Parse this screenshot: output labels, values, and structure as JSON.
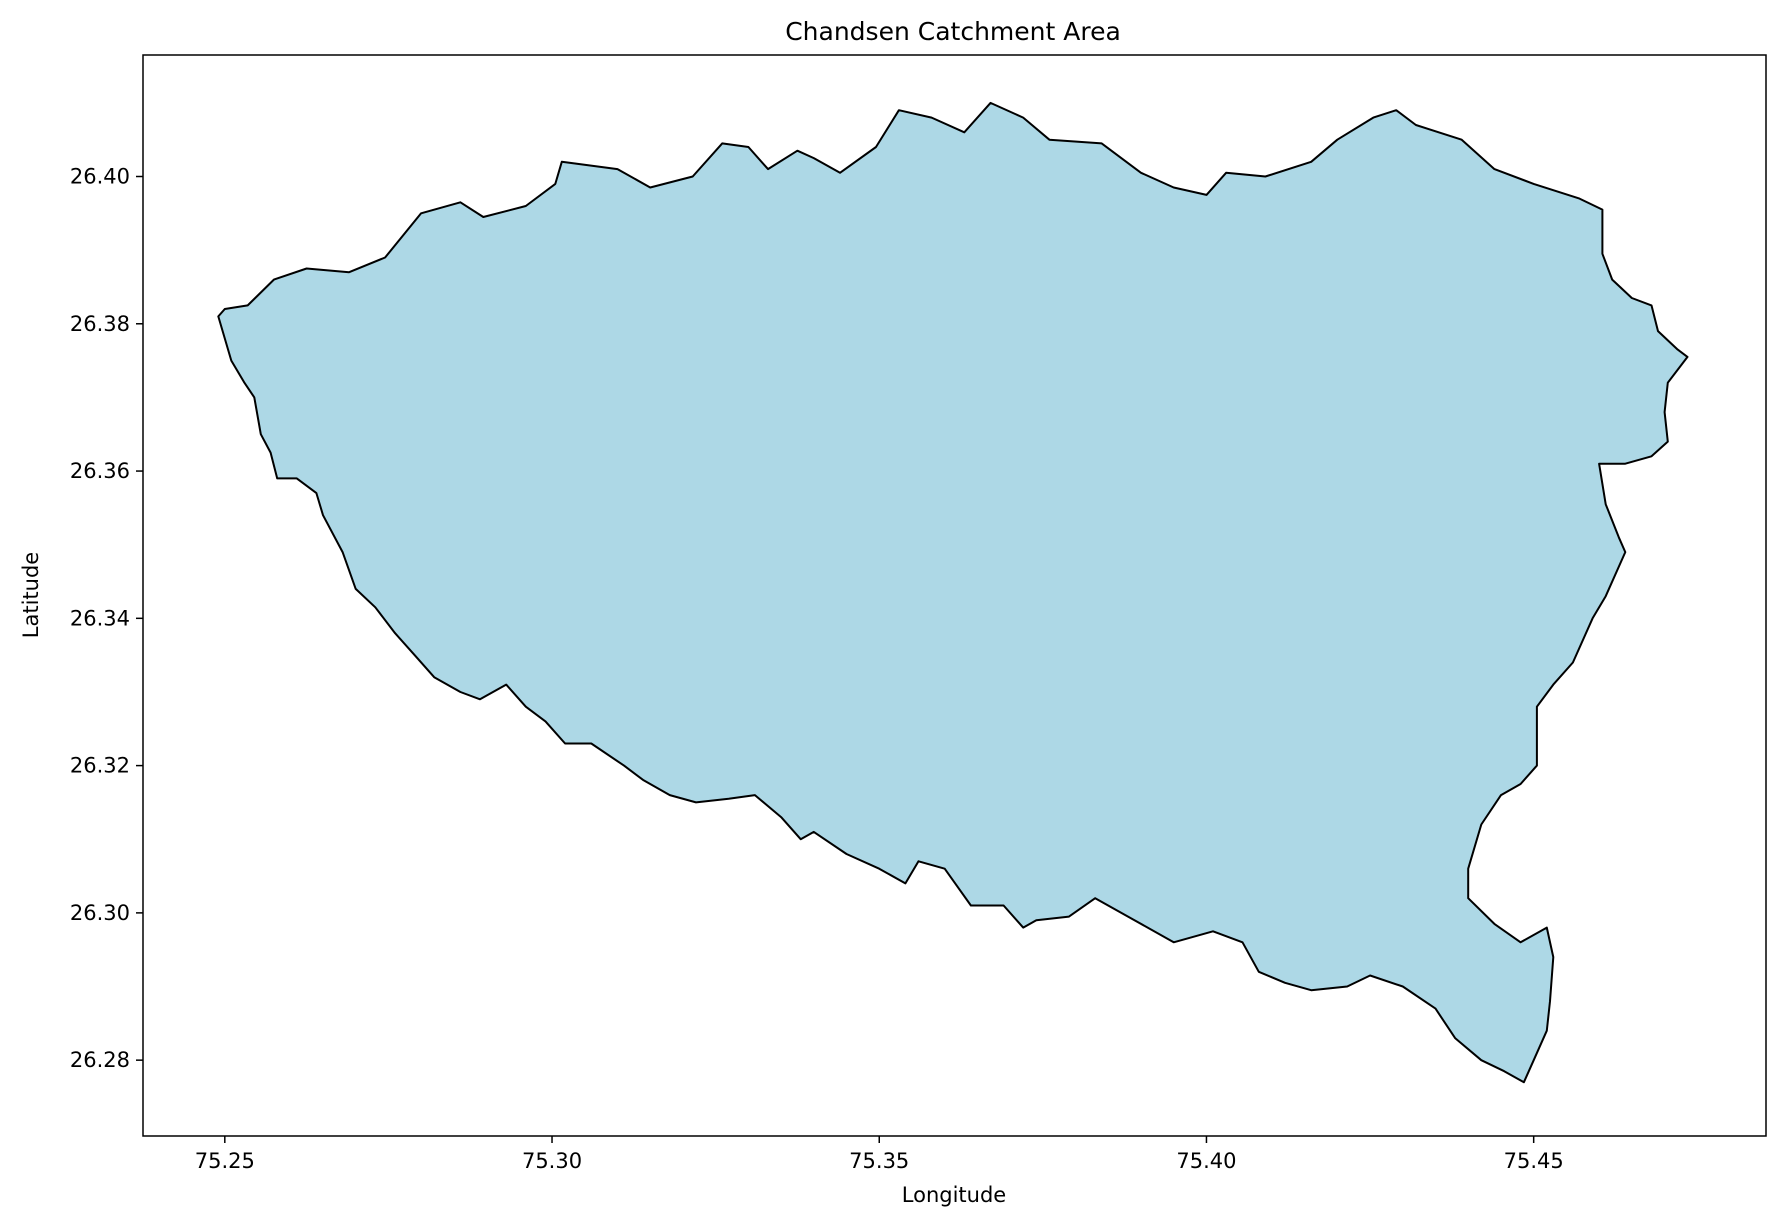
{
  "chart_data": {
    "type": "map",
    "title": "Chandsen Catchment Area",
    "xlabel": "Longitude",
    "ylabel": "Latitude",
    "xlim": [
      75.2375,
      75.4855
    ],
    "ylim": [
      26.2697,
      26.4165
    ],
    "x_ticks": [
      75.25,
      75.3,
      75.35,
      75.4,
      75.45
    ],
    "x_tick_labels": [
      "75.25",
      "75.30",
      "75.35",
      "75.40",
      "75.45"
    ],
    "y_ticks": [
      26.28,
      26.3,
      26.32,
      26.34,
      26.36,
      26.38,
      26.4
    ],
    "y_tick_labels": [
      "26.28",
      "26.30",
      "26.32",
      "26.34",
      "26.36",
      "26.38",
      "26.40"
    ],
    "grid": false,
    "fill_color": "#add8e6",
    "edge_color": "#000000",
    "polygon_name": "Chandsen catchment boundary",
    "boundary": [
      [
        75.249,
        26.381
      ],
      [
        75.25,
        26.382
      ],
      [
        75.2535,
        26.3825
      ],
      [
        75.2575,
        26.386
      ],
      [
        75.2625,
        26.3875
      ],
      [
        75.269,
        26.387
      ],
      [
        75.2745,
        26.389
      ],
      [
        75.28,
        26.395
      ],
      [
        75.286,
        26.3965
      ],
      [
        75.2895,
        26.3945
      ],
      [
        75.296,
        26.396
      ],
      [
        75.3005,
        26.399
      ],
      [
        75.3015,
        26.402
      ],
      [
        75.31,
        26.401
      ],
      [
        75.315,
        26.3985
      ],
      [
        75.3215,
        26.4
      ],
      [
        75.326,
        26.4045
      ],
      [
        75.33,
        26.404
      ],
      [
        75.333,
        26.401
      ],
      [
        75.3375,
        26.4035
      ],
      [
        75.34,
        26.4025
      ],
      [
        75.344,
        26.4005
      ],
      [
        75.3495,
        26.404
      ],
      [
        75.353,
        26.409
      ],
      [
        75.358,
        26.408
      ],
      [
        75.363,
        26.406
      ],
      [
        75.367,
        26.41
      ],
      [
        75.372,
        26.408
      ],
      [
        75.376,
        26.405
      ],
      [
        75.384,
        26.4045
      ],
      [
        75.39,
        26.4005
      ],
      [
        75.395,
        26.3985
      ],
      [
        75.4,
        26.3975
      ],
      [
        75.403,
        26.4005
      ],
      [
        75.409,
        26.4
      ],
      [
        75.416,
        26.402
      ],
      [
        75.42,
        26.405
      ],
      [
        75.4255,
        26.408
      ],
      [
        75.429,
        26.409
      ],
      [
        75.432,
        26.407
      ],
      [
        75.439,
        26.405
      ],
      [
        75.444,
        26.401
      ],
      [
        75.45,
        26.399
      ],
      [
        75.457,
        26.397
      ],
      [
        75.4605,
        26.3955
      ],
      [
        75.4605,
        26.3895
      ],
      [
        75.462,
        26.386
      ],
      [
        75.465,
        26.3835
      ],
      [
        75.468,
        26.3825
      ],
      [
        75.469,
        26.379
      ],
      [
        75.472,
        26.3765
      ],
      [
        75.4735,
        26.3755
      ],
      [
        75.4705,
        26.372
      ],
      [
        75.47,
        26.368
      ],
      [
        75.4705,
        26.364
      ],
      [
        75.468,
        26.362
      ],
      [
        75.464,
        26.361
      ],
      [
        75.46,
        26.361
      ],
      [
        75.461,
        26.3555
      ],
      [
        75.463,
        26.351
      ],
      [
        75.464,
        26.349
      ],
      [
        75.461,
        26.343
      ],
      [
        75.459,
        26.34
      ],
      [
        75.456,
        26.334
      ],
      [
        75.453,
        26.331
      ],
      [
        75.4505,
        26.328
      ],
      [
        75.4505,
        26.32
      ],
      [
        75.448,
        26.3175
      ],
      [
        75.445,
        26.316
      ],
      [
        75.442,
        26.312
      ],
      [
        75.44,
        26.306
      ],
      [
        75.44,
        26.302
      ],
      [
        75.444,
        26.2985
      ],
      [
        75.448,
        26.296
      ],
      [
        75.452,
        26.298
      ],
      [
        75.453,
        26.294
      ],
      [
        75.4525,
        26.288
      ],
      [
        75.452,
        26.284
      ],
      [
        75.45,
        26.28
      ],
      [
        75.4485,
        26.277
      ],
      [
        75.4455,
        26.2785
      ],
      [
        75.442,
        26.28
      ],
      [
        75.438,
        26.283
      ],
      [
        75.435,
        26.287
      ],
      [
        75.43,
        26.29
      ],
      [
        75.425,
        26.2915
      ],
      [
        75.4215,
        26.29
      ],
      [
        75.416,
        26.2895
      ],
      [
        75.412,
        26.2905
      ],
      [
        75.408,
        26.292
      ],
      [
        75.4055,
        26.296
      ],
      [
        75.401,
        26.2975
      ],
      [
        75.395,
        26.296
      ],
      [
        75.389,
        26.299
      ],
      [
        75.383,
        26.302
      ],
      [
        75.379,
        26.2995
      ],
      [
        75.374,
        26.299
      ],
      [
        75.372,
        26.298
      ],
      [
        75.369,
        26.301
      ],
      [
        75.364,
        26.301
      ],
      [
        75.36,
        26.306
      ],
      [
        75.356,
        26.307
      ],
      [
        75.354,
        26.304
      ],
      [
        75.35,
        26.306
      ],
      [
        75.345,
        26.308
      ],
      [
        75.34,
        26.311
      ],
      [
        75.338,
        26.31
      ],
      [
        75.335,
        26.313
      ],
      [
        75.331,
        26.316
      ],
      [
        75.327,
        26.3155
      ],
      [
        75.322,
        26.315
      ],
      [
        75.318,
        26.316
      ],
      [
        75.314,
        26.318
      ],
      [
        75.311,
        26.32
      ],
      [
        75.306,
        26.323
      ],
      [
        75.302,
        26.323
      ],
      [
        75.299,
        26.326
      ],
      [
        75.296,
        26.328
      ],
      [
        75.293,
        26.331
      ],
      [
        75.289,
        26.329
      ],
      [
        75.286,
        26.33
      ],
      [
        75.282,
        26.332
      ],
      [
        75.279,
        26.335
      ],
      [
        75.276,
        26.338
      ],
      [
        75.273,
        26.3415
      ],
      [
        75.27,
        26.344
      ],
      [
        75.268,
        26.349
      ],
      [
        75.265,
        26.354
      ],
      [
        75.264,
        26.357
      ],
      [
        75.261,
        26.359
      ],
      [
        75.258,
        26.359
      ],
      [
        75.257,
        26.3625
      ],
      [
        75.2555,
        26.365
      ],
      [
        75.2545,
        26.37
      ],
      [
        75.253,
        26.372
      ],
      [
        75.251,
        26.375
      ],
      [
        75.25,
        26.378
      ],
      [
        75.249,
        26.381
      ]
    ]
  }
}
